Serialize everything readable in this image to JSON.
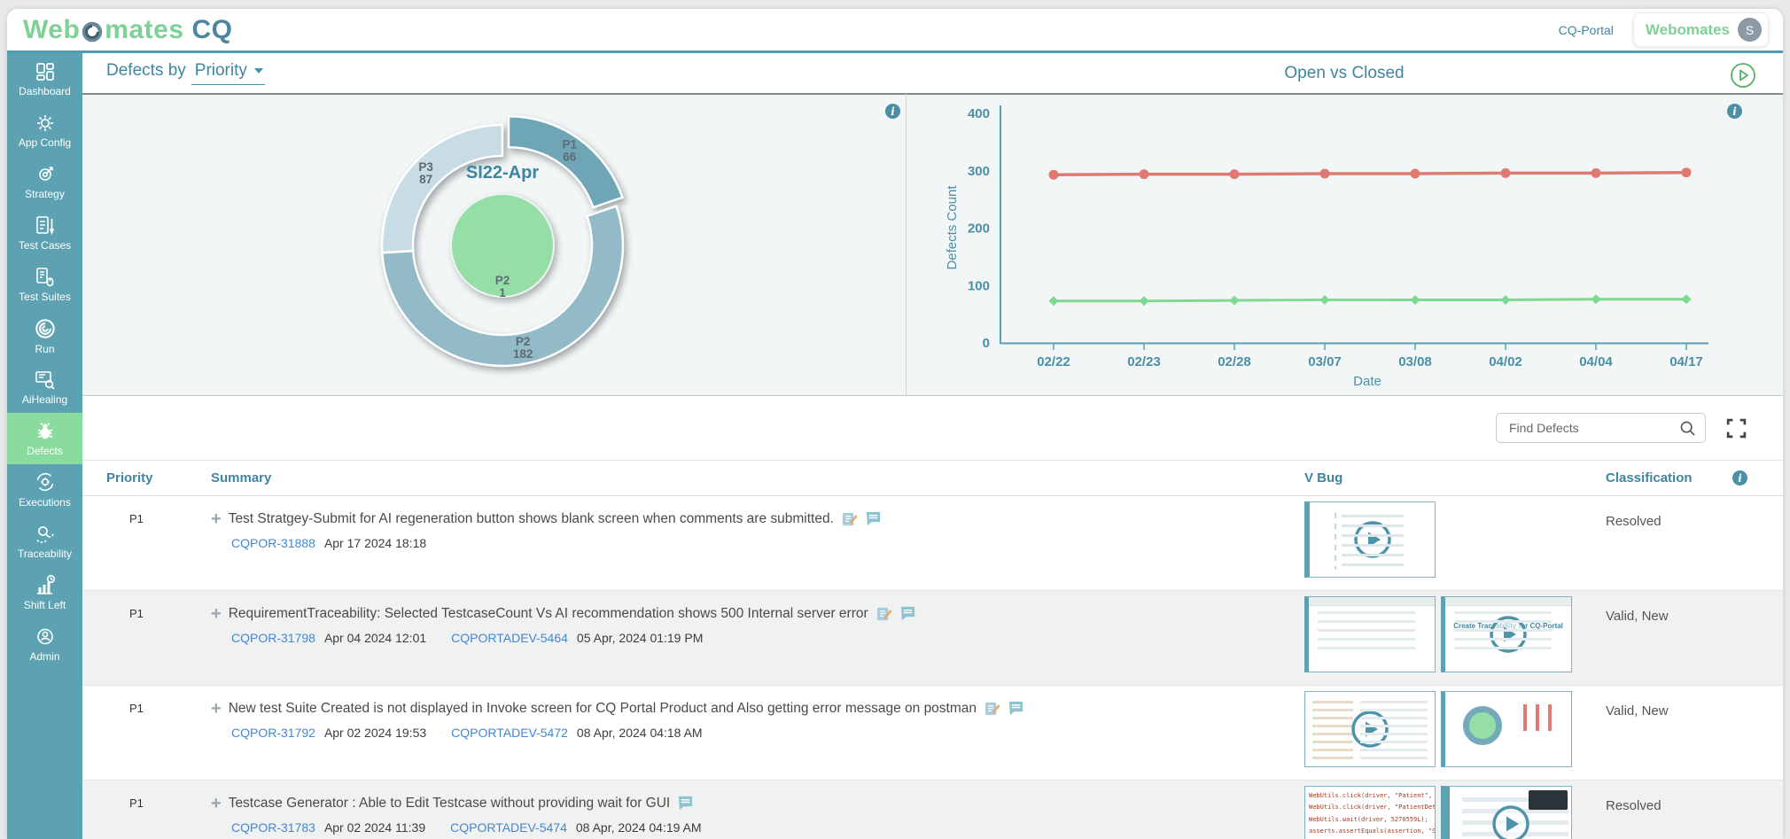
{
  "header": {
    "logo_web": "Web",
    "logo_mates": "mates",
    "logo_cq": "CQ",
    "portal_link": "CQ-Portal",
    "account_brand": "Webomates",
    "avatar_initial": "S"
  },
  "sidebar": {
    "items": [
      {
        "name": "dashboard",
        "label": "Dashboard",
        "icon": "dashboard-grid-icon",
        "active": false
      },
      {
        "name": "app-config",
        "label": "App Config",
        "icon": "gear-icon",
        "active": false
      },
      {
        "name": "strategy",
        "label": "Strategy",
        "icon": "strategy-target-icon",
        "active": false
      },
      {
        "name": "test-cases",
        "label": "Test Cases",
        "icon": "test-cases-document-icon",
        "active": false
      },
      {
        "name": "test-suites",
        "label": "Test Suites",
        "icon": "test-suites-document-icon",
        "active": false
      },
      {
        "name": "run",
        "label": "Run",
        "icon": "run-spiral-icon",
        "active": false
      },
      {
        "name": "aihealing",
        "label": "AiHealing",
        "icon": "ai-healing-screen-icon",
        "active": false
      },
      {
        "name": "defects",
        "label": "Defects",
        "icon": "bug-icon",
        "active": true
      },
      {
        "name": "executions",
        "label": "Executions",
        "icon": "executions-gear-cycle-icon",
        "active": false
      },
      {
        "name": "traceability",
        "label": "Traceability",
        "icon": "traceability-search-path-icon",
        "active": false
      },
      {
        "name": "shift-left",
        "label": "Shift Left",
        "icon": "shift-left-chart-icon",
        "active": false
      },
      {
        "name": "admin",
        "label": "Admin",
        "icon": "admin-user-gear-icon",
        "active": false
      }
    ]
  },
  "panels": {
    "left": {
      "title_prefix": "Defects by",
      "dropdown_value": "Priority"
    },
    "right": {
      "title": "Open vs Closed"
    }
  },
  "chart_data": [
    {
      "type": "donut",
      "center_label": "SI22-Apr",
      "outer_ring": [
        {
          "label": "P1",
          "value": 66,
          "color": "#6ea6b8",
          "exploded": true
        },
        {
          "label": "P2",
          "value": 182,
          "color": "#92bac7",
          "exploded": false
        },
        {
          "label": "P3",
          "value": 87,
          "color": "#c7dce4",
          "exploded": false
        }
      ],
      "inner_circle": {
        "label": "P2",
        "value": 1,
        "color": "#95dfa7"
      }
    },
    {
      "type": "line",
      "title": "Open vs Closed",
      "x": [
        "02/22",
        "02/23",
        "02/28",
        "03/07",
        "03/08",
        "04/02",
        "04/04",
        "04/17"
      ],
      "series": [
        {
          "name": "Open",
          "color": "#dd7b72",
          "marker": "circle",
          "values": [
            293,
            294,
            294,
            295,
            295,
            296,
            296,
            297
          ]
        },
        {
          "name": "Closed",
          "color": "#7ed992",
          "marker": "diamond",
          "values": [
            73,
            73,
            74,
            75,
            75,
            75,
            76,
            76
          ]
        }
      ],
      "xlabel": "Date",
      "ylabel": "Defects Count",
      "ylim": [
        0,
        400
      ],
      "yticks": [
        0,
        100,
        200,
        300,
        400
      ],
      "grid": false,
      "legend": "none"
    }
  ],
  "defects_table": {
    "search_placeholder": "Find Defects",
    "columns": {
      "priority": "Priority",
      "summary": "Summary",
      "vbug": "V Bug",
      "classification": "Classification"
    },
    "rows": [
      {
        "priority": "P1",
        "summary": "Test Stratgey-Submit for AI regeneration button shows blank screen when comments are submitted.",
        "links": [
          {
            "id": "CQPOR-31888",
            "date": "Apr 17 2024 18:18"
          }
        ],
        "classification": "Resolved"
      },
      {
        "priority": "P1",
        "summary": "RequirementTraceability: Selected TestcaseCount Vs AI recommendation shows 500 Internal server error",
        "links": [
          {
            "id": "CQPOR-31798",
            "date": "Apr 04 2024 12:01"
          },
          {
            "id": "CQPORTADEV-5464",
            "date": "05 Apr, 2024 01:19 PM"
          }
        ],
        "thumb_caption": "Create Traceability for CQ-Portal",
        "classification": "Valid, New"
      },
      {
        "priority": "P1",
        "summary": "New test Suite Created is not displayed in Invoke screen for CQ Portal Product and Also getting error message on postman",
        "links": [
          {
            "id": "CQPOR-31792",
            "date": "Apr 02 2024 19:53"
          },
          {
            "id": "CQPORTADEV-5472",
            "date": "08 Apr, 2024 04:18 AM"
          }
        ],
        "classification": "Valid, New"
      },
      {
        "priority": "P1",
        "summary": "Testcase Generator : Able to Edit Testcase without providing wait for GUI",
        "links": [
          {
            "id": "CQPOR-31783",
            "date": "Apr 02 2024 11:39"
          },
          {
            "id": "CQPORTADEV-5474",
            "date": "08 Apr, 2024 04:19 AM"
          }
        ],
        "code_lines": [
          "WebUtils.click(driver, \"Patient\", \"viewS",
          "WebUtils.click(driver, \"PatientDetails\",",
          "WebUtils.wait(driver, 5270559L);",
          "asserts.assertEquals(assertion, \"Sessio"
        ],
        "classification": "Resolved"
      }
    ]
  }
}
